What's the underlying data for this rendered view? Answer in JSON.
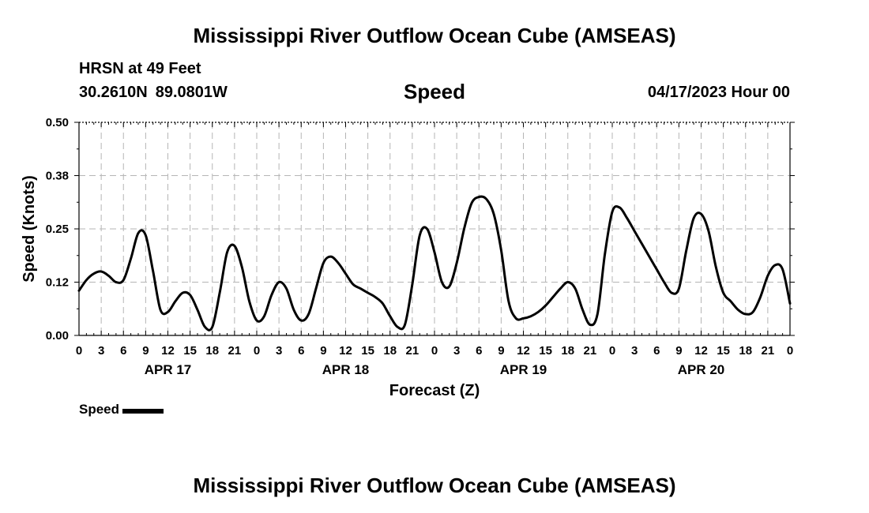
{
  "header": {
    "title": "Mississippi River Outflow Ocean Cube (AMSEAS)",
    "station": "HRSN at 49 Feet",
    "latitude": "30.2610N",
    "longitude": "89.0801W",
    "subtitle": "Speed",
    "datetime": "04/17/2023 Hour 00"
  },
  "footer": {
    "title": "Mississippi River Outflow Ocean Cube (AMSEAS)"
  },
  "legend": {
    "label": "Speed",
    "color": "#000000"
  },
  "chart_data": {
    "type": "line",
    "title": "Speed",
    "xlabel": "Forecast (Z)",
    "ylabel": "Speed (Knots)",
    "ylim": [
      0,
      0.5
    ],
    "yticks": [
      "0.00",
      "0.12",
      "0.25",
      "0.38",
      "0.50"
    ],
    "xlim": [
      0,
      96
    ],
    "xtick_labels": [
      "0",
      "3",
      "6",
      "9",
      "12",
      "15",
      "18",
      "21",
      "0",
      "3",
      "6",
      "9",
      "12",
      "15",
      "18",
      "21",
      "0",
      "3",
      "6",
      "9",
      "12",
      "15",
      "18",
      "21",
      "0",
      "3",
      "6",
      "9",
      "12",
      "15",
      "18",
      "21",
      "0"
    ],
    "date_labels": [
      {
        "label": "APR 17",
        "hour": 12
      },
      {
        "label": "APR 18",
        "hour": 36
      },
      {
        "label": "APR 19",
        "hour": 60
      },
      {
        "label": "APR 20",
        "hour": 84
      }
    ],
    "grid": true,
    "legend_position": "bottom-left",
    "series": [
      {
        "name": "Speed",
        "color": "#000000",
        "x": [
          0,
          1,
          2,
          3,
          4,
          5,
          6,
          7,
          8,
          9,
          10,
          11,
          12,
          13,
          14,
          15,
          16,
          17,
          18,
          19,
          20,
          21,
          22,
          23,
          24,
          25,
          26,
          27,
          28,
          29,
          30,
          31,
          32,
          33,
          34,
          35,
          36,
          37,
          38,
          39,
          40,
          41,
          42,
          43,
          44,
          45,
          46,
          47,
          48,
          49,
          50,
          51,
          52,
          53,
          54,
          55,
          56,
          57,
          58,
          59,
          60,
          61,
          62,
          63,
          64,
          65,
          66,
          67,
          68,
          69,
          70,
          71,
          72,
          73,
          74,
          75,
          76,
          77,
          78,
          79,
          80,
          81,
          82,
          83,
          84,
          85,
          86,
          87,
          88,
          89,
          90,
          91,
          92,
          93,
          94,
          95,
          96
        ],
        "y": [
          0.105,
          0.13,
          0.145,
          0.15,
          0.14,
          0.125,
          0.13,
          0.18,
          0.24,
          0.235,
          0.15,
          0.06,
          0.055,
          0.08,
          0.1,
          0.095,
          0.06,
          0.02,
          0.02,
          0.1,
          0.195,
          0.21,
          0.16,
          0.08,
          0.035,
          0.045,
          0.095,
          0.125,
          0.11,
          0.06,
          0.035,
          0.05,
          0.11,
          0.17,
          0.185,
          0.17,
          0.145,
          0.12,
          0.11,
          0.1,
          0.09,
          0.075,
          0.045,
          0.02,
          0.025,
          0.12,
          0.235,
          0.25,
          0.195,
          0.125,
          0.115,
          0.17,
          0.25,
          0.31,
          0.325,
          0.32,
          0.285,
          0.2,
          0.08,
          0.04,
          0.04,
          0.045,
          0.055,
          0.07,
          0.09,
          0.11,
          0.125,
          0.11,
          0.06,
          0.025,
          0.05,
          0.19,
          0.29,
          0.3,
          0.275,
          0.245,
          0.215,
          0.185,
          0.155,
          0.125,
          0.1,
          0.11,
          0.2,
          0.275,
          0.285,
          0.245,
          0.16,
          0.1,
          0.08,
          0.06,
          0.05,
          0.055,
          0.09,
          0.14,
          0.165,
          0.155,
          0.075
        ]
      }
    ]
  }
}
